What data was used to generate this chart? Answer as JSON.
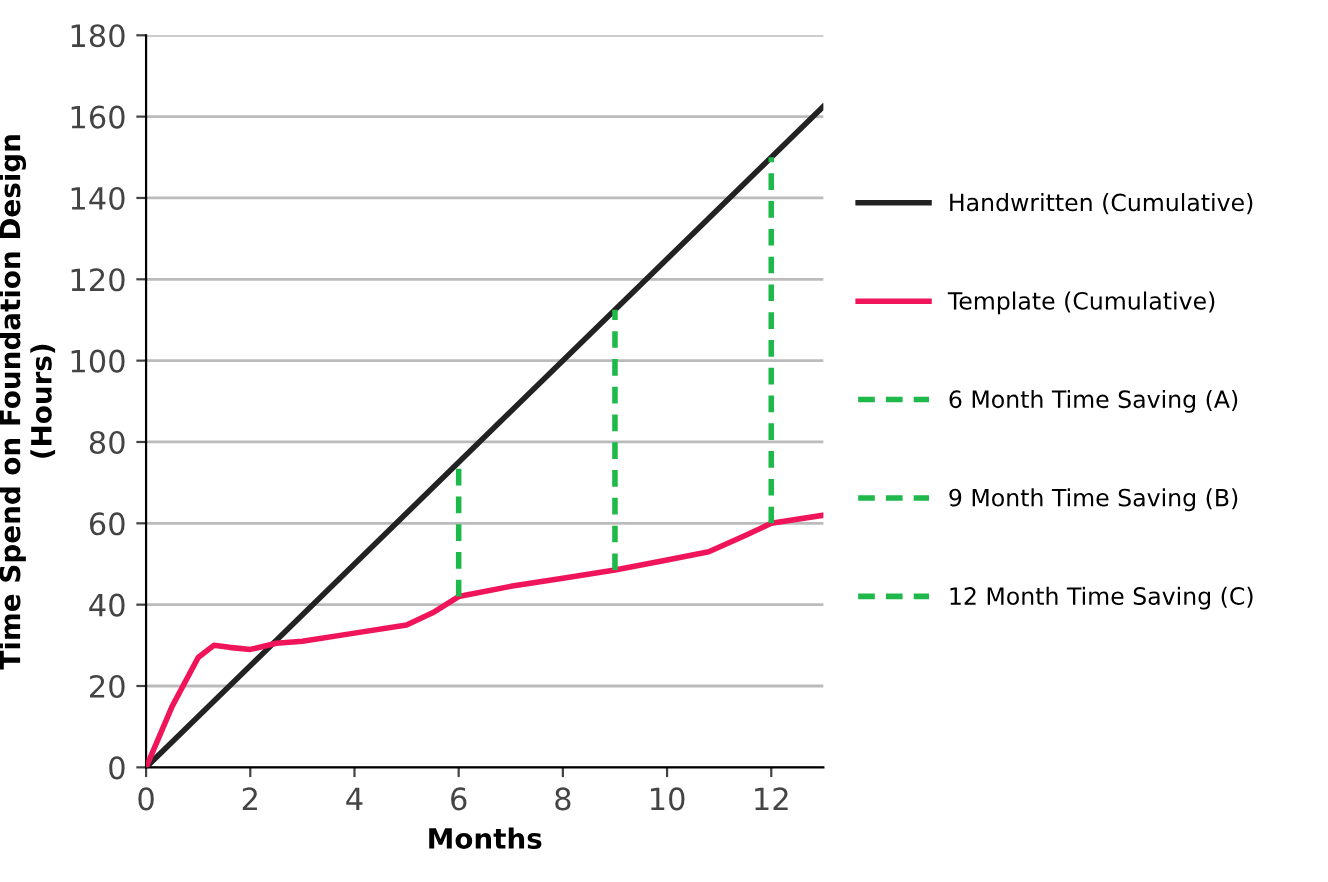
{
  "chart_data": {
    "type": "line",
    "xlabel": "Months",
    "ylabel": "Time Spend on Foundation Design\n(Hours)",
    "xlim": [
      0,
      13
    ],
    "ylim": [
      0,
      180
    ],
    "xticks": [
      0,
      2,
      4,
      6,
      8,
      10,
      12
    ],
    "yticks": [
      0,
      20,
      40,
      60,
      80,
      100,
      120,
      140,
      160,
      180
    ],
    "grid": "y",
    "legend": "right",
    "marker": "none",
    "series": [
      {
        "name": "Handwritten (Cumulative)",
        "color": "#222222",
        "line_style": "solid",
        "x": [
          0,
          13
        ],
        "values": [
          0,
          162.5
        ]
      },
      {
        "name": "Template (Cumulative)",
        "color": "#f0145a",
        "line_style": "solid",
        "x": [
          0,
          0.5,
          1,
          1.3,
          1.6,
          2,
          2.5,
          3,
          4,
          5,
          5.5,
          6,
          7,
          8,
          9,
          10,
          10.8,
          11.5,
          12,
          13
        ],
        "values": [
          0,
          15,
          27,
          30,
          29.5,
          29,
          30.5,
          31,
          33,
          35,
          38,
          42,
          44.5,
          46.5,
          48.5,
          51,
          53,
          57,
          60,
          62
        ]
      },
      {
        "name": "6 Month Time Saving (A)",
        "color": "#1fb84a",
        "line_style": "dashed",
        "x": [
          6,
          6
        ],
        "values": [
          42,
          75
        ]
      },
      {
        "name": "9 Month Time Saving (B)",
        "color": "#1fb84a",
        "line_style": "dashed",
        "x": [
          9,
          9
        ],
        "values": [
          48.5,
          112.5
        ]
      },
      {
        "name": "12 Month Time Saving (C)",
        "color": "#1fb84a",
        "line_style": "dashed",
        "x": [
          12,
          12
        ],
        "values": [
          60,
          150
        ]
      }
    ]
  }
}
